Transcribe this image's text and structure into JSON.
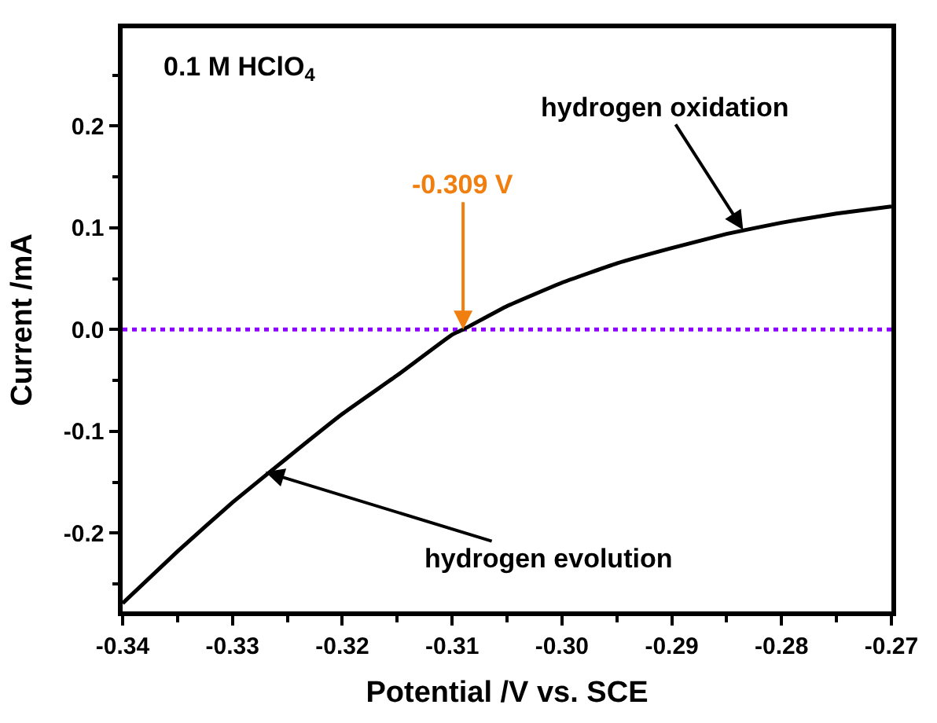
{
  "chart_data": {
    "type": "line",
    "xlabel": "Potential /V vs. SCE",
    "ylabel": "Current /mA",
    "x": [
      -0.34,
      -0.335,
      -0.33,
      -0.325,
      -0.32,
      -0.315,
      -0.31,
      -0.309,
      -0.305,
      -0.3,
      -0.295,
      -0.29,
      -0.285,
      -0.28,
      -0.275,
      -0.27
    ],
    "series": [
      {
        "color": "#000000",
        "values": [
          -0.269,
          -0.218,
          -0.17,
          -0.126,
          -0.083,
          -0.045,
          -0.005,
          0.0,
          0.023,
          0.046,
          0.065,
          0.08,
          0.094,
          0.105,
          0.114,
          0.121
        ]
      }
    ],
    "xlim": [
      -0.34,
      -0.27
    ],
    "xticks": [
      -0.34,
      -0.33,
      -0.32,
      -0.31,
      {
        "value": -0.3,
        "label": "-0.30"
      },
      -0.29,
      -0.28,
      -0.27
    ],
    "ylim": [
      -0.277,
      0.296
    ],
    "yticks": [
      -0.2,
      -0.1,
      {
        "value": 0,
        "label": "0.0"
      },
      0.1,
      0.2
    ],
    "ref_lines": [
      {
        "axis": "y",
        "value": 0,
        "color": "#8b00ff",
        "line_style": "dotted"
      }
    ],
    "annotations": [
      "0.1 M HClO$_{4}$",
      {
        "text": "hydrogen oxidation",
        "x": -0.2835,
        "y": 0.098
      },
      {
        "text": "hydrogen evolution",
        "x": -0.327,
        "y": -0.14
      },
      {
        "text": "-0.309 V",
        "x": -0.309,
        "y": 0.0
      }
    ]
  }
}
